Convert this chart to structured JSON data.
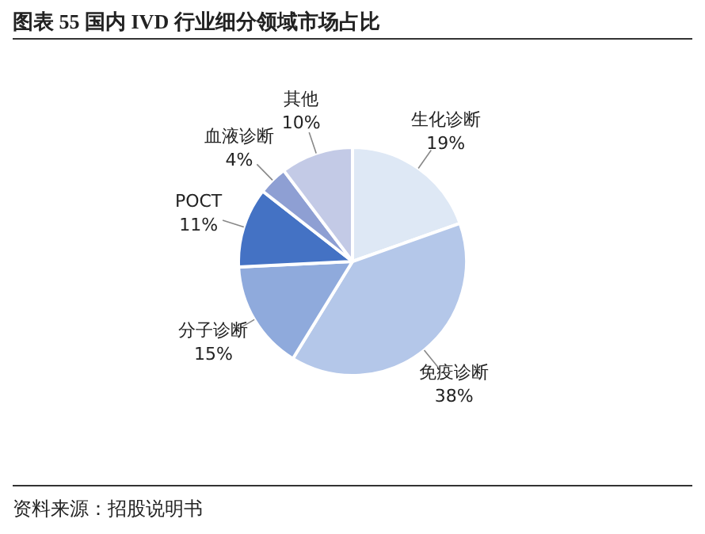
{
  "chart_data": {
    "type": "pie",
    "title": "图表 55  国内 IVD 行业细分领域市场占比",
    "categories": [
      "生化诊断",
      "免疫诊断",
      "分子诊断",
      "POCT",
      "血液诊断",
      "其他"
    ],
    "values": [
      19,
      38,
      15,
      11,
      4,
      10
    ],
    "value_labels": [
      "19%",
      "38%",
      "15%",
      "11%",
      "4%",
      "10%"
    ],
    "colors": [
      "#dee8f5",
      "#b4c7e9",
      "#8faadc",
      "#4472c4",
      "#8e9fd3",
      "#c3cae6"
    ],
    "legend": false,
    "annotations": [
      "资料来源：招股说明书"
    ]
  }
}
